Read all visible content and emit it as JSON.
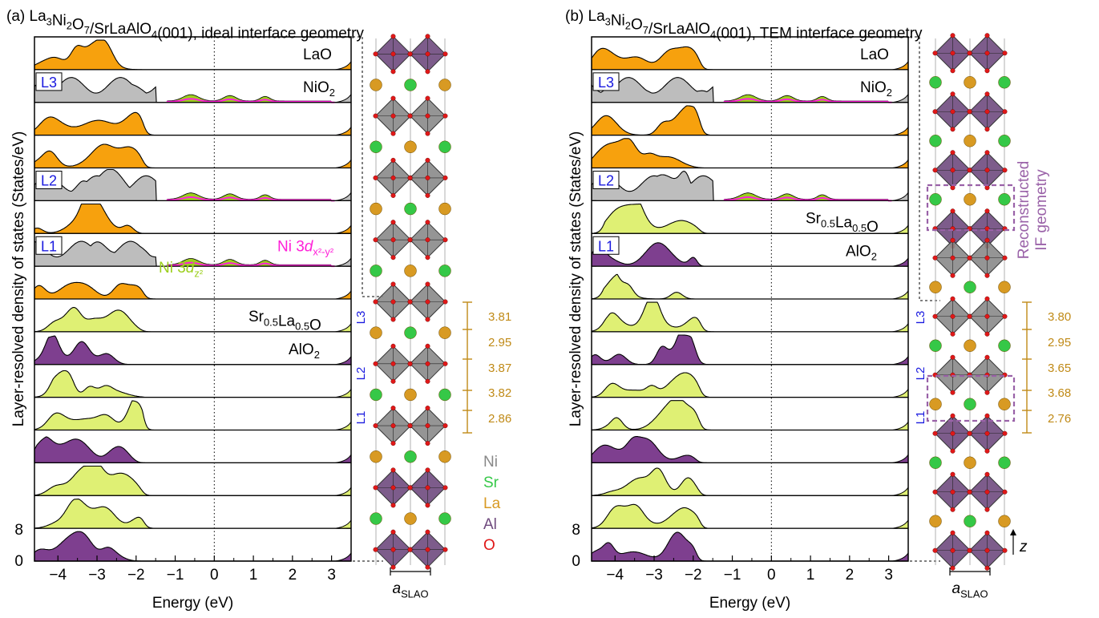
{
  "panels": [
    {
      "title": {
        "prefix": "(a) ",
        "parts": [
          "La",
          "3",
          "Ni",
          "2",
          "O",
          "7",
          "/SrLaAlO",
          "4",
          "(001), ideal interface geometry"
        ]
      },
      "layer_labels": [
        "LaO",
        "NiO2",
        "Sr0.5La0.5O",
        "AlO2"
      ],
      "l_boxes": [
        "L3",
        "L2",
        "L1"
      ],
      "legend_orbitals": {
        "x2y2": "Ni 3dx²-y²",
        "z2": "Ni 3dz²"
      },
      "distances": [
        "3.81",
        "2.95",
        "3.87",
        "3.82",
        "2.86"
      ],
      "side_labels": [
        "L3",
        "L2",
        "L1"
      ],
      "species_legend": [
        "Ni",
        "Sr",
        "La",
        "Al",
        "O"
      ],
      "lattice_label": "aSLAO"
    },
    {
      "title": {
        "prefix": "(b) ",
        "parts": [
          "La",
          "3",
          "Ni",
          "2",
          "O",
          "7",
          "/SrLaAlO",
          "4",
          "(001), TEM interface geometry"
        ]
      },
      "layer_labels": [
        "LaO",
        "NiO2",
        "Sr0.5La0.5O",
        "AlO2"
      ],
      "l_boxes": [
        "L3",
        "L2",
        "L1"
      ],
      "distances": [
        "3.80",
        "2.95",
        "3.65",
        "3.68",
        "2.76"
      ],
      "side_labels": [
        "L3",
        "L2",
        "L1"
      ],
      "reconstructed_label": [
        "Reconstructed",
        "IF geometry"
      ],
      "lattice_label": "aSLAO",
      "z_label": "z"
    }
  ],
  "colors": {
    "LaO": "#f7a10d",
    "NiO2": "#bdbdbd",
    "SrLaO": "#dff074",
    "AlO2": "#7e3f8f",
    "ni_x2y2": "#ff1fd8",
    "ni_z2": "#9ccf1d",
    "La_atom": "#d89a23",
    "Sr_atom": "#35c847",
    "O_atom": "#e01818",
    "Al_oct": "#6f4a7e",
    "Ni_oct": "#8a8a8a",
    "label_blue": "#1a1adf",
    "dist_color": "#c08a17",
    "purple_box": "#9a62a8"
  },
  "chart_data": [
    {
      "type": "area",
      "title": "(a) La3Ni2O7/SrLaAlO4(001), ideal interface geometry",
      "xlabel": "Energy (eV)",
      "ylabel": "Layer-resolved density of states (States/eV)",
      "xlim": [
        -4.6,
        3.5
      ],
      "xticks": [
        "−4",
        "−3",
        "−2",
        "−1",
        "0",
        "1",
        "2",
        "3"
      ],
      "yticks": [
        "0",
        "8"
      ],
      "layers_top_to_bottom": [
        "LaO",
        "NiO2",
        "LaO",
        "LaO",
        "NiO2",
        "LaO",
        "NiO2",
        "LaO",
        "SrLaO",
        "AlO2",
        "SrLaO",
        "SrLaO",
        "AlO2",
        "SrLaO",
        "SrLaO",
        "AlO2"
      ],
      "band_edges_eV": {
        "LaO": -1.8,
        "NiO2": -1.5,
        "SrLaO": -1.8,
        "AlO2": -1.9
      }
    },
    {
      "type": "area",
      "title": "(b) La3Ni2O7/SrLaAlO4(001), TEM interface geometry",
      "xlabel": "Energy (eV)",
      "ylabel": "Layer-resolved density of states (States/eV)",
      "xlim": [
        -4.6,
        3.5
      ],
      "xticks": [
        "−4",
        "−3",
        "−2",
        "−1",
        "0",
        "1",
        "2",
        "3"
      ],
      "yticks": [
        "0",
        "8"
      ],
      "layers_top_to_bottom": [
        "LaO",
        "NiO2",
        "LaO",
        "LaO",
        "NiO2",
        "SrLaO",
        "AlO2",
        "SrLaO",
        "SrLaO",
        "AlO2",
        "SrLaO",
        "SrLaO",
        "AlO2",
        "SrLaO",
        "SrLaO",
        "AlO2"
      ],
      "band_edges_eV": {
        "LaO": -1.7,
        "NiO2": -1.5,
        "SrLaO": -1.0,
        "AlO2": -1.0
      }
    }
  ]
}
